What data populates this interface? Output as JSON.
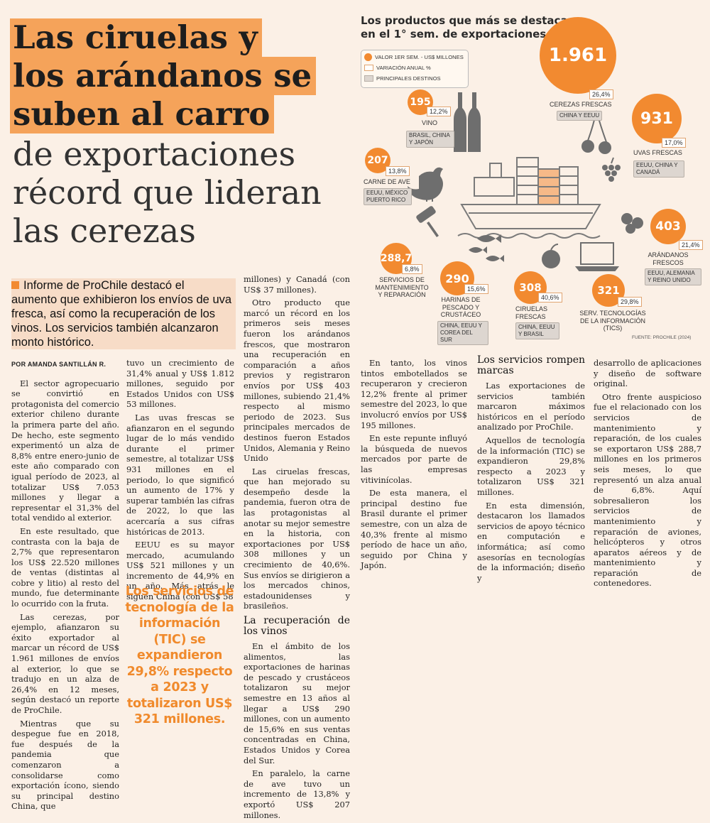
{
  "headline": {
    "bold_lines": [
      "Las ciruelas y",
      "los arándanos se",
      "suben al carro"
    ],
    "light_lines": [
      "de exportaciones",
      "récord que lideran",
      "las cerezas"
    ]
  },
  "lead": "Informe de ProChile destacó el aumento que exhibieron los envíos de uva fresca, así como la recuperación de los vinos. Los servicios también alcanzaron monto histórico.",
  "byline": "POR AMANDA SANTILLÁN R.",
  "pull_quote": "Los servicios de tecnología de la información (TIC) se expandieron 29,8% respecto a 2023 y totalizaron US$ 321 millones.",
  "article": {
    "col1": [
      "El sector agropecuario se convirtió en protagonista del comercio exterior chileno durante la primera parte del año. De hecho, este segmento experimentó un alza de 8,8% entre enero-junio de este año comparado con igual período de 2023, al totalizar US$ 7.053 millones y llegar a representar el 31,3% del total vendido al exterior.",
      "En este resultado, que contrasta con la baja de 2,7% que representaron los US$ 22.520 millones de ventas (distintas al cobre y litio) al resto del mundo, fue determinante lo ocurrido con la fruta.",
      "Las cerezas, por ejemplo, afianzaron su éxito exportador al marcar un récord de US$ 1.961 millones de envíos al exterior, lo que se tradujo en un alza de 26,4% en 12 meses, según destacó un reporte de ProChile.",
      "Mientras que su despegue fue en 2018, fue después de la pandemia que comenzaron a consolidarse como exportación ícono, siendo su principal destino China, que"
    ],
    "col2": [
      "tuvo un crecimiento de 31,4% anual y US$ 1.812 millones, seguido por Estados Unidos con US$ 53 millones.",
      "Las uvas frescas se afianzaron en el segundo lugar de lo más vendido durante el primer semestre, al totalizar US$ 931 millones en el periodo, lo que significó un aumento de 17% y superar también las cifras de 2022, lo que las acercaría a sus cifras históricas de 2013.",
      "EEUU es su mayor mercado, acumulando US$ 521 millones y un incremento de 44,9% en un año. Más atrás le siguen China (con US$ 58"
    ],
    "col3": [
      "millones) y Canadá (con US$ 37 millones).",
      "Otro producto que marcó un récord en los primeros seis meses fueron los arándanos frescos, que mostraron una recuperación en comparación a años previos y registraron envíos por US$ 403 millones, subiendo 21,4% respecto al mismo periodo de 2023. Sus principales mercados de destinos fueron Estados Unidos, Alemania y Reino Unido",
      "Las ciruelas frescas, que han mejorado su desempeño desde la pandemia, fueron otra de las protagonistas al anotar su mejor semestre en la historia, con exportaciones por US$ 308 millones y un crecimiento de 40,6%. Sus envíos se dirigieron a los mercados chinos, estadounidenses y brasileños."
    ],
    "subhead_vinos": "La recuperación de los vinos",
    "col3b": [
      "En el ámbito de los alimentos, las exportaciones de harinas de pescado y crustáceos totalizaron su mejor semestre en 13 años al llegar a US$ 290 millones, con un aumento de 15,6% en sus ventas concentradas en China, Estados Unidos y Corea del Sur.",
      "En paralelo, la carne de ave tuvo un incremento de 13,8% y exportó US$ 207 millones."
    ],
    "col4": [
      "En tanto, los vinos tintos embotellados se recuperaron y crecieron 12,2% frente al primer semestre del 2023, lo que involucró envíos por US$ 195 millones.",
      "En este repunte influyó la búsqueda de nuevos mercados por parte de las empresas vitivinícolas.",
      "De esta manera, el principal destino fue Brasil durante el primer semestre, con un alza de 40,3% frente al mismo período de hace un año, seguido por China y Japón."
    ],
    "subhead_servicios": "Los servicios rompen marcas",
    "col5": [
      "Las exportaciones de servicios también marcaron máximos históricos en el período analizado por ProChile.",
      "Aquellos de tecnología de la información (TIC) se expandieron 29,8% respecto a 2023 y totalizaron US$ 321 millones.",
      "En esta dimensión, destacaron los llamados servicios de apoyo técnico en computación e informática; así como asesorías en tecnologías de la información; diseño y"
    ],
    "col6": [
      "desarrollo de aplicaciones y diseño de software original.",
      "Otro frente auspicioso fue el relacionado con los servicios de mantenimiento y reparación, de los cuales se exportaron US$ 288,7 millones en los primeros seis meses, lo que representó un alza anual de 6,8%. Aquí sobresalieron los servicios de mantenimiento y reparación de aviones, helicópteros y otros aparatos aéreos y de mantenimiento y reparación de contenedores."
    ]
  },
  "infographic": {
    "title_lines": [
      "Los productos que más se destacaron",
      "en el 1° sem. de exportaciones"
    ],
    "legend": {
      "value": "VALOR 1ER SEM. - US$ MILLONES",
      "variation": "VARIACIÓN ANUAL %",
      "destinations": "PRINCIPALES DESTINOS"
    },
    "items": [
      {
        "id": "cerezas",
        "value": "1.961",
        "pct": "26,4%",
        "name": "CEREZAS FRESCAS",
        "dest": "CHINA Y EEUU"
      },
      {
        "id": "uvas",
        "value": "931",
        "pct": "17,0%",
        "name": "UVAS FRESCAS",
        "dest": "EEUU, CHINA Y CANADÁ"
      },
      {
        "id": "vino",
        "value": "195",
        "pct": "12,2%",
        "name": "VINO",
        "dest": "BRASIL, CHINA Y JAPÓN"
      },
      {
        "id": "ave",
        "value": "207",
        "pct": "13,8%",
        "name": "CARNE DE AVE",
        "dest": "EEUU, MÉXICO PUERTO RICO"
      },
      {
        "id": "arandanos",
        "value": "403",
        "pct": "21,4%",
        "name": "ARÁNDANOS FRESCOS",
        "dest": "EEUU, ALEMANIA Y REINO UNIDO"
      },
      {
        "id": "mant",
        "value": "288,7",
        "pct": "6,8%",
        "name": "SERVICIOS DE MANTENIMIENTO Y REPARACIÓN",
        "dest": ""
      },
      {
        "id": "harinas",
        "value": "290",
        "pct": "15,6%",
        "name": "HARINAS DE PESCADO Y CRUSTÁCEO",
        "dest": "CHINA, EEUU Y COREA DEL SUR"
      },
      {
        "id": "ciruelas",
        "value": "308",
        "pct": "40,6%",
        "name": "CIRUELAS FRESCAS",
        "dest": "CHINA, EEUU Y BRASIL"
      },
      {
        "id": "tics",
        "value": "321",
        "pct": "29,8%",
        "name": "SERV. TECNOLOGÍAS DE LA INFORMACIÓN (TICS)",
        "dest": ""
      }
    ],
    "source": "FUENTE: PROCHILE (2024)"
  },
  "colors": {
    "accent": "#f28a30",
    "background": "#fbf0e6",
    "icon": "#6e6e6e"
  }
}
